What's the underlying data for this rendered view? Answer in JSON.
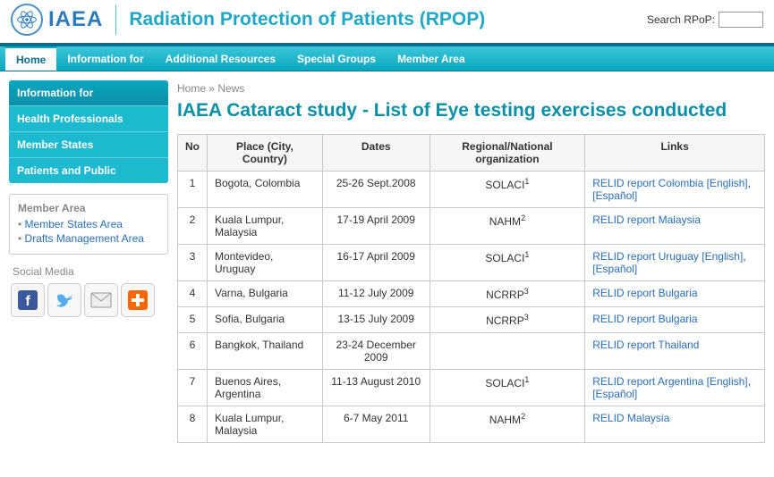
{
  "header": {
    "logo_text": "IAEA",
    "site_title": "Radiation Protection of Patients (RPOP)",
    "search_label": "Search RPoP:"
  },
  "nav": {
    "items": [
      "Home",
      "Information for",
      "Additional Resources",
      "Special Groups",
      "Member Area"
    ],
    "active_index": 0
  },
  "sidebar": {
    "info_block": {
      "title": "Information for",
      "items": [
        "Health Professionals",
        "Member States",
        "Patients and Public"
      ]
    },
    "member_area": {
      "title": "Member Area",
      "links": [
        "Member States Area",
        "Drafts Management Area"
      ]
    },
    "social_title": "Social Media"
  },
  "breadcrumb": {
    "home": "Home",
    "sep": "»",
    "current": "News"
  },
  "page_title": "IAEA Cataract study - List of Eye testing exercises conducted",
  "table": {
    "columns": [
      "No",
      "Place (City, Country)",
      "Dates",
      "Regional/National organization",
      "Links"
    ],
    "rows": [
      {
        "no": "1",
        "place": "Bogota, Colombia",
        "dates": "25-26 Sept.2008",
        "org": "SOLACI",
        "org_sup": "1",
        "links": [
          {
            "t": "RELID report Colombia [English]"
          },
          {
            "t": ", "
          },
          {
            "t": "[Español]"
          }
        ]
      },
      {
        "no": "2",
        "place": "Kuala Lumpur, Malaysia",
        "dates": "17-19 April 2009",
        "org": "NAHM",
        "org_sup": "2",
        "links": [
          {
            "t": "RELID report Malaysia"
          }
        ]
      },
      {
        "no": "3",
        "place": "Montevideo, Uruguay",
        "dates": "16-17 April 2009",
        "org": "SOLACI",
        "org_sup": "1",
        "links": [
          {
            "t": "RELID report Uruguay [English]"
          },
          {
            "t": ", "
          },
          {
            "t": "[Español]"
          }
        ]
      },
      {
        "no": "4",
        "place": "Varna, Bulgaria",
        "dates": "11-12 July 2009",
        "org": "NCRRP",
        "org_sup": "3",
        "links": [
          {
            "t": "RELID report Bulgaria"
          }
        ]
      },
      {
        "no": "5",
        "place": "Sofia, Bulgaria",
        "dates": "13-15 July 2009",
        "org": "NCRRP",
        "org_sup": "3",
        "links": [
          {
            "t": "RELID report Bulgaria"
          }
        ]
      },
      {
        "no": "6",
        "place": "Bangkok, Thailand",
        "dates": "23-24 December 2009",
        "org": "",
        "org_sup": "",
        "links": [
          {
            "t": "RELID report Thailand"
          }
        ]
      },
      {
        "no": "7",
        "place": "Buenos Aires, Argentina",
        "dates": "11-13 August 2010",
        "org": "SOLACI",
        "org_sup": "1",
        "links": [
          {
            "t": "RELID report Argentina [English]"
          },
          {
            "t": ", "
          },
          {
            "t": "[Español]"
          }
        ]
      },
      {
        "no": "8",
        "place": "Kuala Lumpur, Malaysia",
        "dates": "6-7 May 2011",
        "org": "NAHM",
        "org_sup": "2",
        "links": [
          {
            "t": "RELID Malaysia"
          }
        ]
      }
    ]
  },
  "colors": {
    "brand_blue": "#2a7bbf",
    "accent_teal": "#0aa7c0",
    "link": "#2a6fb5"
  }
}
